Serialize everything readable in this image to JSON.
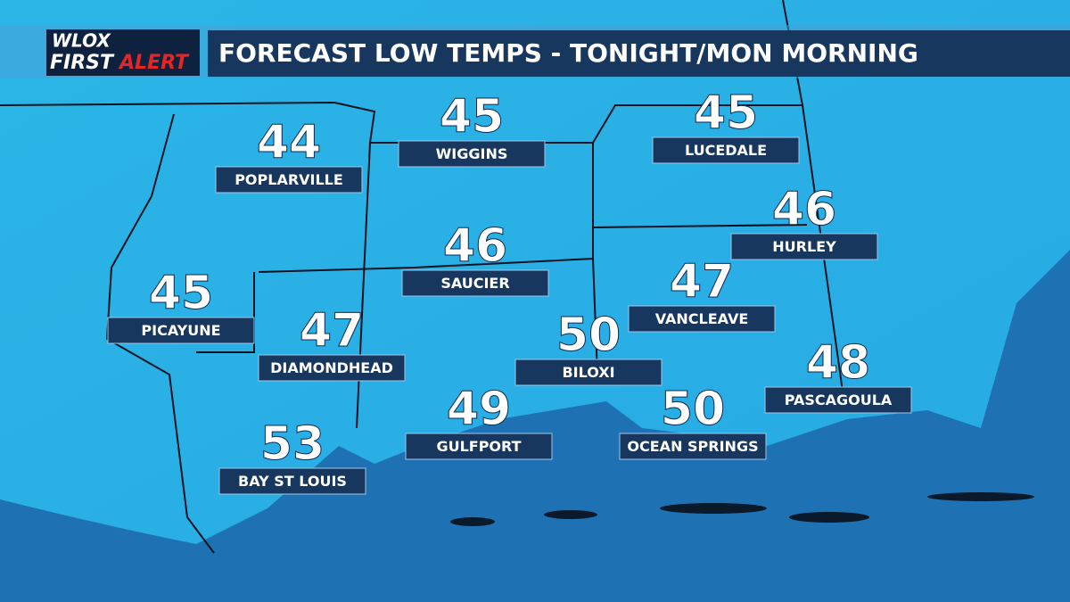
{
  "logo": {
    "station": "WLOX",
    "first": "FIRST",
    "alert": "ALERT"
  },
  "header": {
    "title": "FORECAST LOW TEMPS - TONIGHT/MON MORNING"
  },
  "cities": [
    {
      "name": "POPLARVILLE",
      "temp": 44
    },
    {
      "name": "WIGGINS",
      "temp": 45
    },
    {
      "name": "LUCEDALE",
      "temp": 45
    },
    {
      "name": "HURLEY",
      "temp": 46
    },
    {
      "name": "SAUCIER",
      "temp": 46
    },
    {
      "name": "PICAYUNE",
      "temp": 45
    },
    {
      "name": "VANCLEAVE",
      "temp": 47
    },
    {
      "name": "DIAMONDHEAD",
      "temp": 47
    },
    {
      "name": "BILOXI",
      "temp": 50
    },
    {
      "name": "PASCAGOULA",
      "temp": 48
    },
    {
      "name": "GULFPORT",
      "temp": 49
    },
    {
      "name": "OCEAN SPRINGS",
      "temp": 50
    },
    {
      "name": "BAY ST LOUIS",
      "temp": 53
    }
  ]
}
